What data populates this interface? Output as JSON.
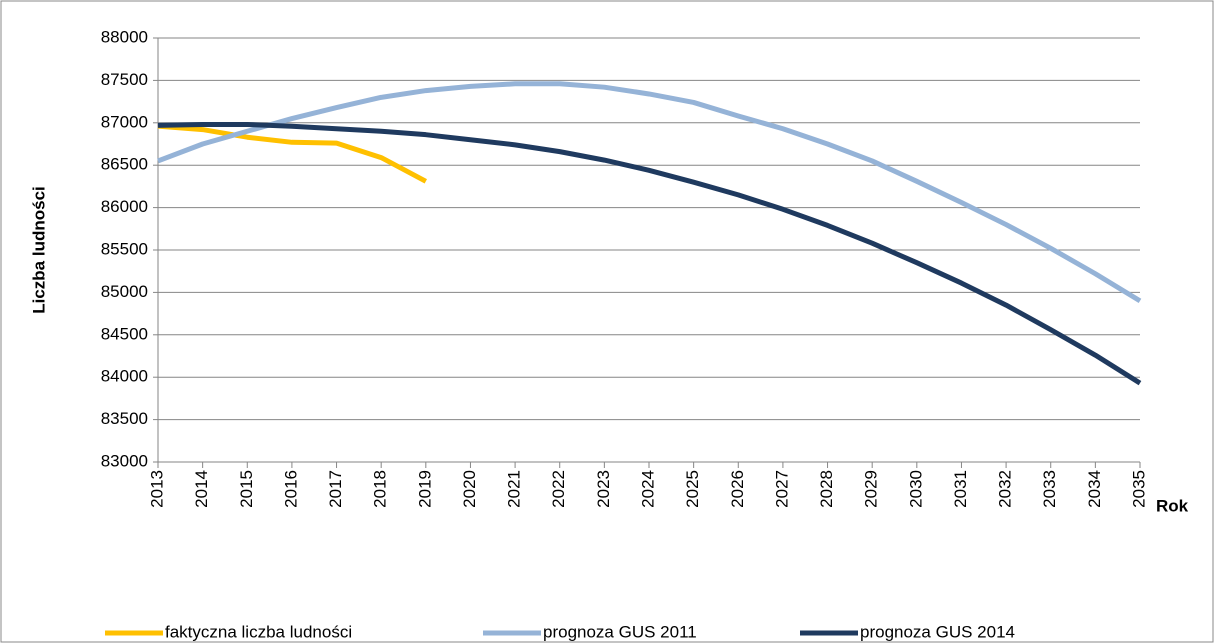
{
  "chart_data": {
    "type": "line",
    "y_label": "Liczba ludności",
    "x_label": "Rok",
    "categories": [
      "2013",
      "2014",
      "2015",
      "2016",
      "2017",
      "2018",
      "2019",
      "2020",
      "2021",
      "2022",
      "2023",
      "2024",
      "2025",
      "2026",
      "2027",
      "2028",
      "2029",
      "2030",
      "2031",
      "2032",
      "2033",
      "2034",
      "2035"
    ],
    "series": [
      {
        "name": "faktyczna liczba ludności",
        "color": "#ffc000",
        "values": [
          86960,
          86920,
          86830,
          86770,
          86760,
          86590,
          86310,
          null,
          null,
          null,
          null,
          null,
          null,
          null,
          null,
          null,
          null,
          null,
          null,
          null,
          null,
          null,
          null
        ]
      },
      {
        "name": "prognoza GUS 2011",
        "color": "#95b3d7",
        "values": [
          86550,
          86750,
          86900,
          87050,
          87180,
          87300,
          87380,
          87430,
          87460,
          87460,
          87420,
          87340,
          87240,
          87080,
          86930,
          86750,
          86550,
          86310,
          86060,
          85800,
          85520,
          85220,
          84900
        ]
      },
      {
        "name": "prognoza GUS 2014",
        "color": "#1f3a5f",
        "values": [
          86970,
          86980,
          86980,
          86960,
          86930,
          86900,
          86860,
          86800,
          86740,
          86660,
          86560,
          86440,
          86300,
          86150,
          85980,
          85790,
          85580,
          85350,
          85110,
          84850,
          84560,
          84260,
          83930
        ]
      }
    ],
    "ylim": [
      83000,
      88000
    ],
    "yticks": [
      83000,
      83500,
      84000,
      84500,
      85000,
      85500,
      86000,
      86500,
      87000,
      87500,
      88000
    ],
    "grid": true,
    "legend": "bottom"
  }
}
